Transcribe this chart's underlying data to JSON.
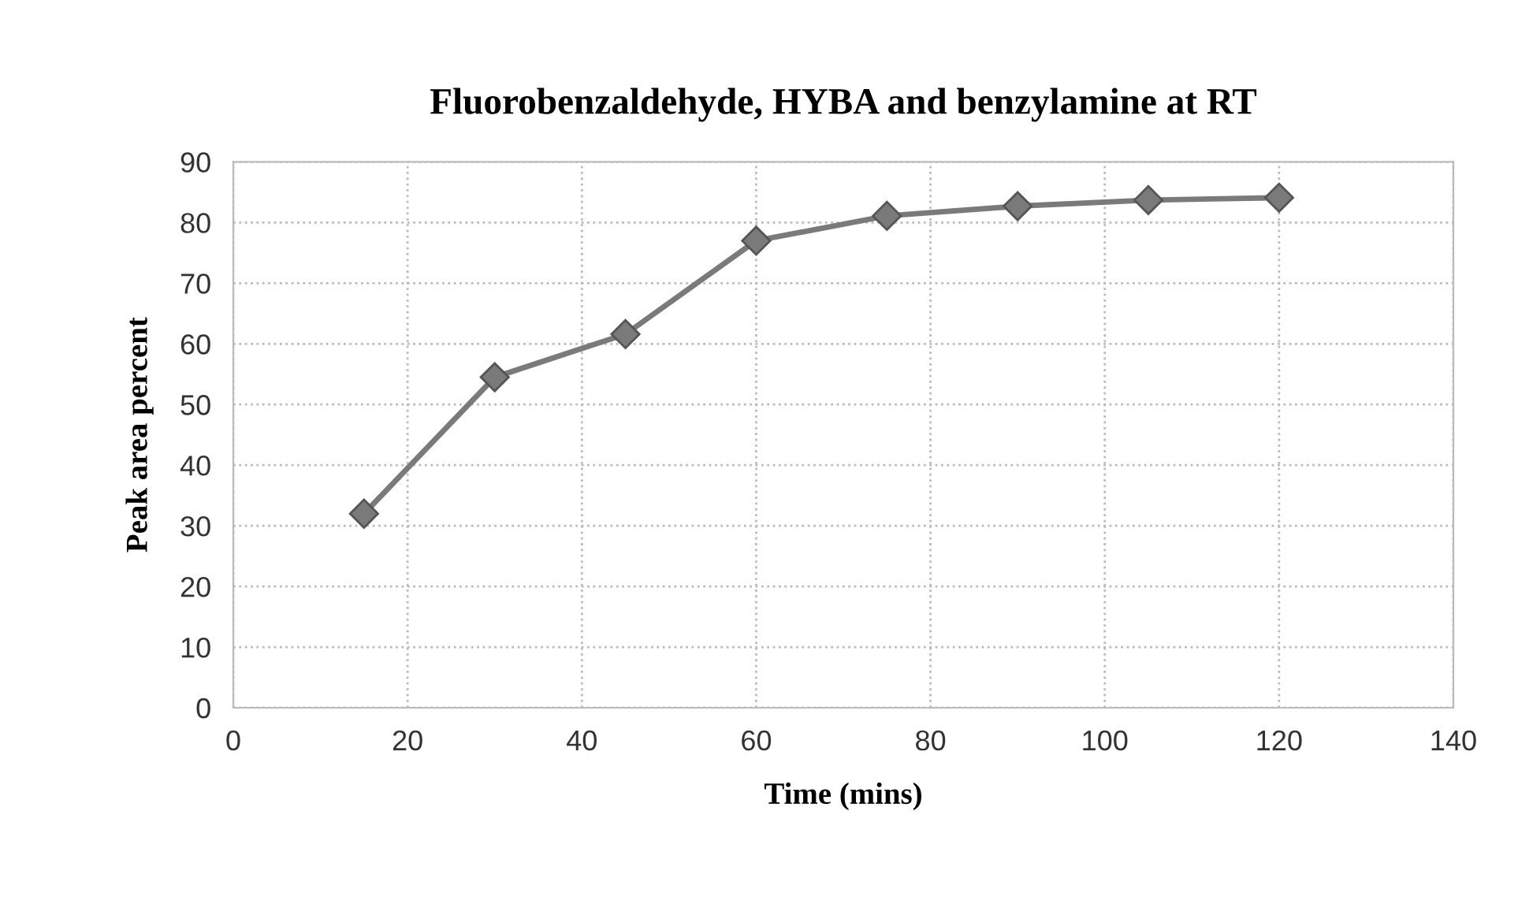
{
  "chart_data": {
    "type": "line",
    "title": "Fluorobenzaldehyde, HYBA and benzylamine at RT",
    "xlabel": "Time (mins)",
    "ylabel": "Peak area percent",
    "x": [
      15,
      30,
      45,
      60,
      75,
      90,
      105,
      120
    ],
    "series": [
      {
        "color": "#7a7a7a",
        "values": [
          32.0,
          54.5,
          61.6,
          77.0,
          81.1,
          82.7,
          83.7,
          84.1
        ]
      }
    ],
    "xlim": [
      0,
      140
    ],
    "xticks": [
      0,
      20,
      40,
      60,
      80,
      100,
      120,
      140
    ],
    "ylim": [
      0,
      90
    ],
    "yticks": [
      0,
      10,
      20,
      30,
      40,
      50,
      60,
      70,
      80,
      90
    ],
    "grid": true,
    "marker": "diamond",
    "line_style": "solid",
    "legend": false
  }
}
